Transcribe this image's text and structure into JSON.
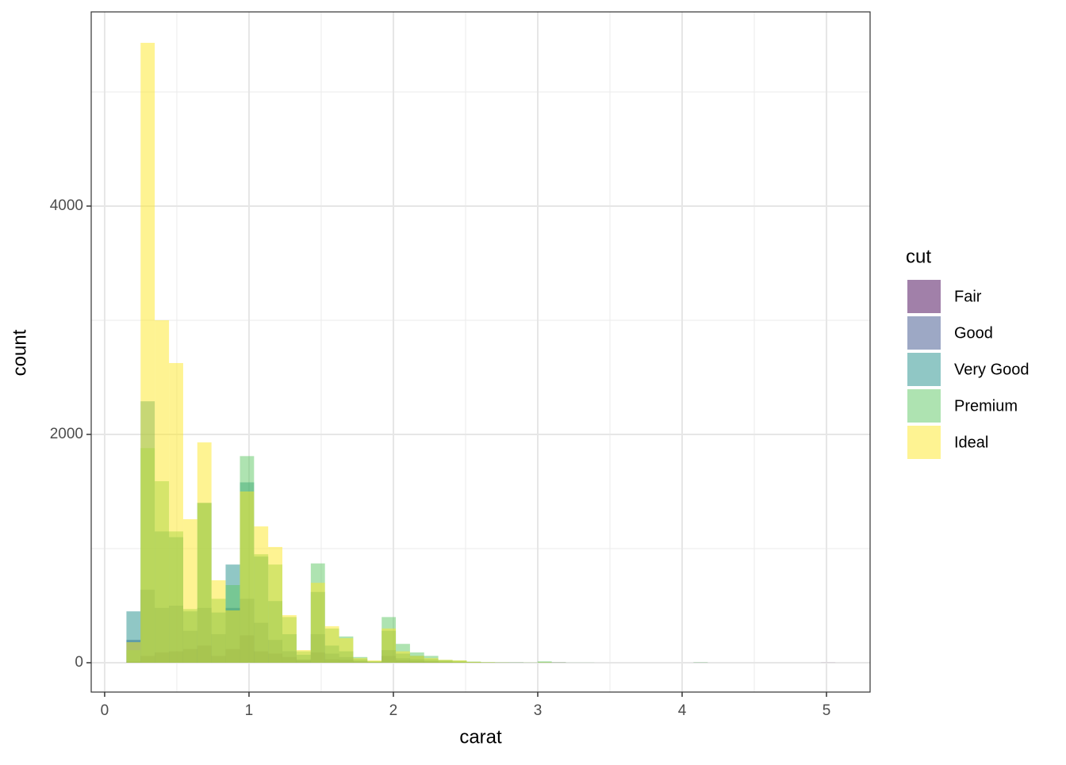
{
  "chart_data": {
    "type": "histogram",
    "xlabel": "carat",
    "ylabel": "count",
    "legend_title": "cut",
    "legend": "right",
    "alpha": 0.5,
    "bins": [
      0.151,
      0.249,
      0.347,
      0.446,
      0.544,
      0.642,
      0.74,
      0.838,
      0.937,
      1.035,
      1.133,
      1.231,
      1.329,
      1.428,
      1.526,
      1.624,
      1.722,
      1.82,
      1.919,
      2.017,
      2.115,
      2.213,
      2.311,
      2.41,
      2.508,
      2.606,
      2.704,
      2.802,
      2.901,
      2.999,
      3.097,
      3.195,
      3.293,
      3.392,
      3.49,
      3.588,
      3.686,
      3.784,
      3.883,
      3.981,
      4.079,
      4.177,
      4.275,
      4.374,
      4.472,
      4.57,
      4.668,
      4.766,
      4.865,
      4.963,
      5.061
    ],
    "series": [
      {
        "name": "Fair",
        "color": "#440154",
        "values": [
          10,
          60,
          90,
          100,
          120,
          150,
          60,
          120,
          240,
          100,
          80,
          50,
          20,
          90,
          30,
          25,
          10,
          5,
          60,
          20,
          15,
          10,
          5,
          3,
          2,
          1,
          1,
          1,
          0,
          1,
          2,
          0,
          0,
          0,
          0,
          0,
          0,
          0,
          0,
          0,
          1,
          0,
          0,
          0,
          0,
          0,
          0,
          0,
          0,
          1
        ]
      },
      {
        "name": "Good",
        "color": "#3B528B",
        "values": [
          200,
          640,
          480,
          500,
          280,
          480,
          250,
          480,
          560,
          350,
          200,
          100,
          30,
          250,
          80,
          50,
          15,
          5,
          110,
          40,
          30,
          15,
          10,
          5,
          3,
          2,
          1,
          1,
          0,
          2,
          1,
          0,
          0,
          0,
          0,
          0,
          0,
          0,
          0,
          0,
          0,
          0,
          0,
          0,
          0,
          0,
          0,
          0,
          0,
          0
        ]
      },
      {
        "name": "Very Good",
        "color": "#21908C",
        "values": [
          450,
          2290,
          1150,
          1100,
          450,
          1400,
          440,
          860,
          1580,
          930,
          540,
          250,
          70,
          620,
          150,
          100,
          30,
          10,
          280,
          80,
          60,
          30,
          20,
          12,
          6,
          3,
          2,
          1,
          1,
          3,
          1,
          0,
          0,
          0,
          0,
          0,
          0,
          0,
          0,
          0,
          0,
          0,
          0,
          0,
          0,
          0,
          0,
          0,
          0,
          0
        ]
      },
      {
        "name": "Premium",
        "color": "#5DC863",
        "values": [
          110,
          1880,
          1590,
          1150,
          470,
          1400,
          560,
          680,
          1810,
          950,
          860,
          400,
          100,
          870,
          300,
          230,
          50,
          15,
          400,
          165,
          90,
          60,
          25,
          20,
          10,
          5,
          3,
          2,
          1,
          12,
          2,
          1,
          1,
          0,
          0,
          0,
          0,
          0,
          0,
          0,
          3,
          0,
          0,
          0,
          0,
          0,
          0,
          0,
          0,
          0
        ]
      },
      {
        "name": "Ideal",
        "color": "#FDE725",
        "values": [
          180,
          5430,
          3000,
          2625,
          1257,
          1930,
          722,
          458,
          1500,
          1194,
          1014,
          417,
          111,
          700,
          320,
          215,
          40,
          20,
          300,
          100,
          60,
          40,
          25,
          20,
          8,
          4,
          2,
          1,
          1,
          3,
          1,
          0,
          0,
          0,
          0,
          0,
          0,
          0,
          0,
          0,
          0,
          0,
          0,
          0,
          0,
          0,
          0,
          0,
          0,
          0
        ]
      }
    ],
    "xlim": [
      -0.093,
      5.302
    ],
    "ylim": [
      -257,
      5701
    ],
    "xticks": [
      0,
      1,
      2,
      3,
      4,
      5
    ],
    "yticks": [
      0,
      2000,
      4000
    ],
    "xminor": [
      0.5,
      1.5,
      2.5,
      3.5,
      4.5
    ],
    "yminor": [
      1000,
      3000,
      5000
    ],
    "grid": true
  }
}
